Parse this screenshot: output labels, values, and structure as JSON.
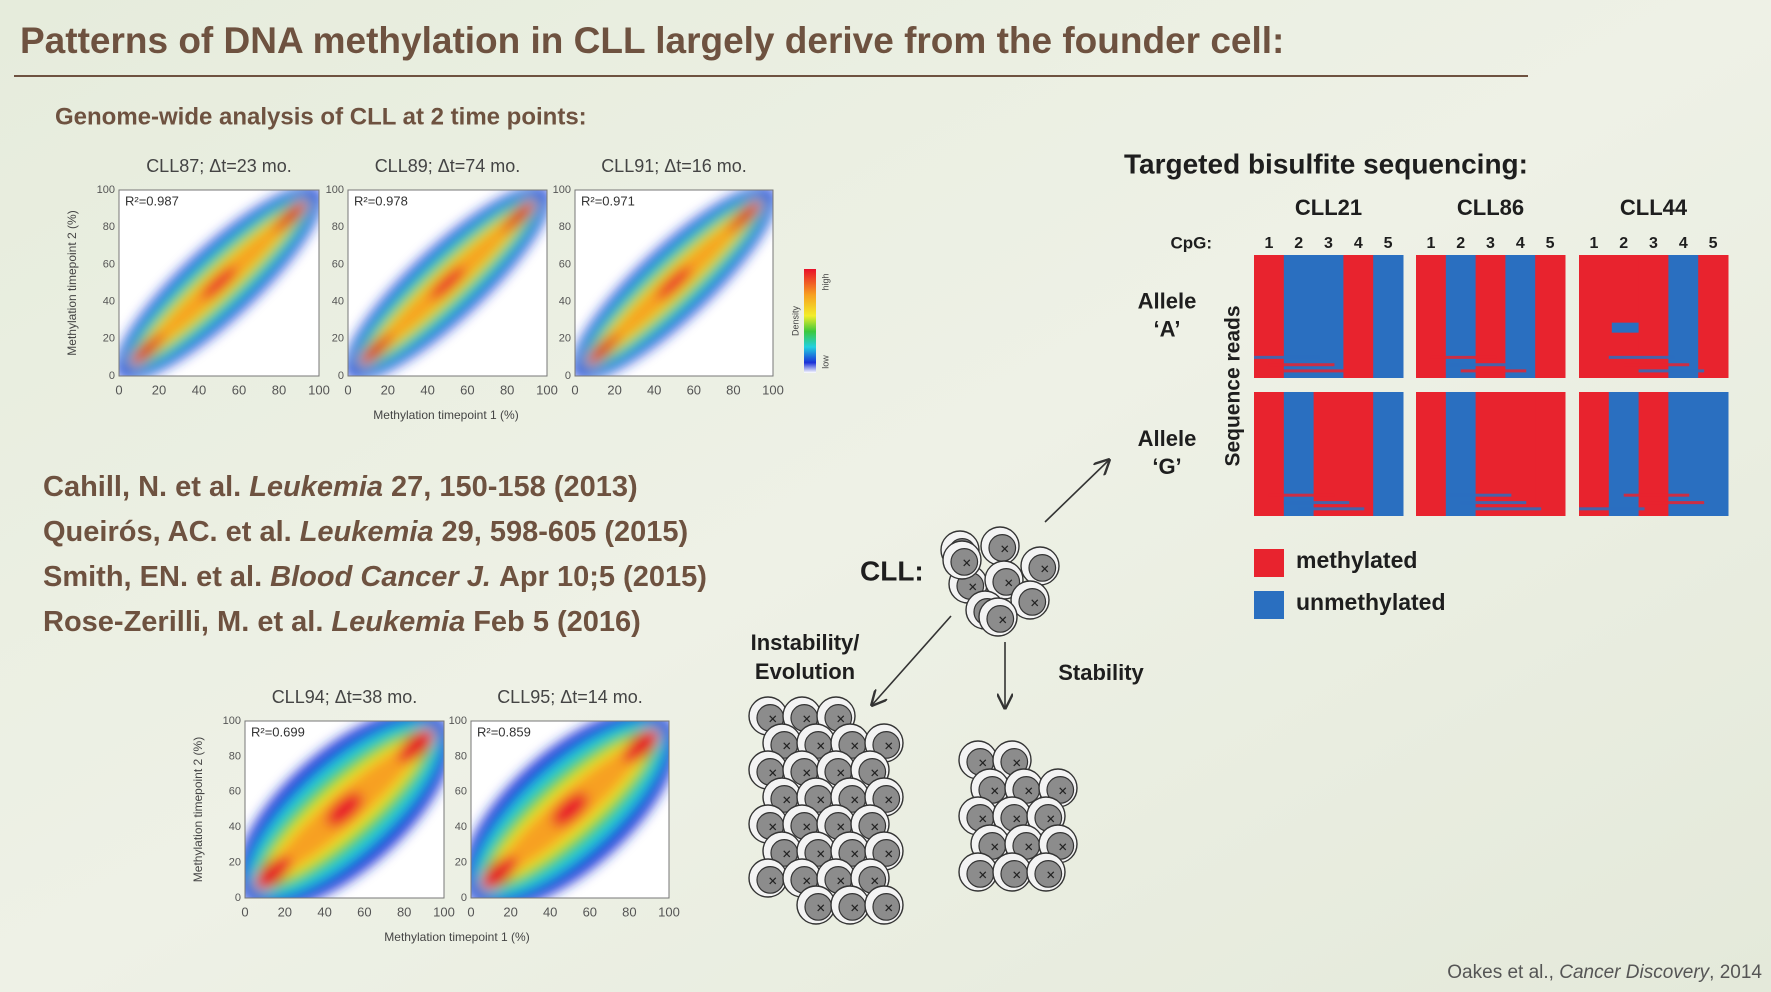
{
  "title": "Patterns of DNA methylation in CLL largely derive from the founder cell:",
  "genome_wide": {
    "heading": "Genome-wide analysis of CLL at 2 time points:",
    "ticks": [
      0,
      20,
      40,
      60,
      80,
      100
    ],
    "top_row": {
      "x_label": "Methylation timepoint 1 (%)",
      "y_label": "Methylation timepoint 2 (%)",
      "plots": [
        {
          "title": "CLL87; Δt=23 mo.",
          "r2": "R²=0.987"
        },
        {
          "title": "CLL89; Δt=74 mo.",
          "r2": "R²=0.978"
        },
        {
          "title": "CLL91; Δt=16 mo.",
          "r2": "R²=0.971"
        }
      ]
    },
    "bottom_row": {
      "x_label": "Methylation timepoint 1 (%)",
      "y_label": "Methylation timepoint 2 (%)",
      "plots": [
        {
          "title": "CLL94; Δt=38 mo.",
          "r2": "R²=0.699"
        },
        {
          "title": "CLL95; Δt=14 mo.",
          "r2": "R²=0.859"
        }
      ]
    },
    "density_legend": {
      "label": "Density",
      "high": "high",
      "low": "low"
    }
  },
  "citations": [
    {
      "authors": "Cahill, N. et al.",
      "journal": "Leukemia",
      "details": "27, 150-158 (2013)"
    },
    {
      "authors": "Queirós, AC. et al.",
      "journal": "Leukemia",
      "details": "29, 598-605 (2015)"
    },
    {
      "authors": "Smith, EN. et al.",
      "journal": "Blood Cancer J.",
      "details": "Apr 10;5 (2015)"
    },
    {
      "authors": "Rose-Zerilli, M. et al.",
      "journal": "Leukemia",
      "details": "Feb 5 (2016)"
    }
  ],
  "diagram": {
    "cll_label": "CLL:",
    "instability": [
      "Instability/",
      "Evolution"
    ],
    "stability": "Stability"
  },
  "bisulfite": {
    "heading": "Targeted bisulfite sequencing:",
    "samples": [
      "CLL21",
      "CLL86",
      "CLL44"
    ],
    "cpg_label": "CpG:",
    "cpg_numbers": [
      1,
      2,
      3,
      4,
      5
    ],
    "alleles": [
      [
        "Allele",
        "‘A’"
      ],
      [
        "Allele",
        "‘G’"
      ]
    ],
    "y_label": "Sequence reads",
    "legend": [
      "methylated",
      "unmethylated"
    ]
  },
  "footer": {
    "authors": "Oakes et al., ",
    "journal": "Cancer Discovery",
    "year": ", 2014"
  }
}
